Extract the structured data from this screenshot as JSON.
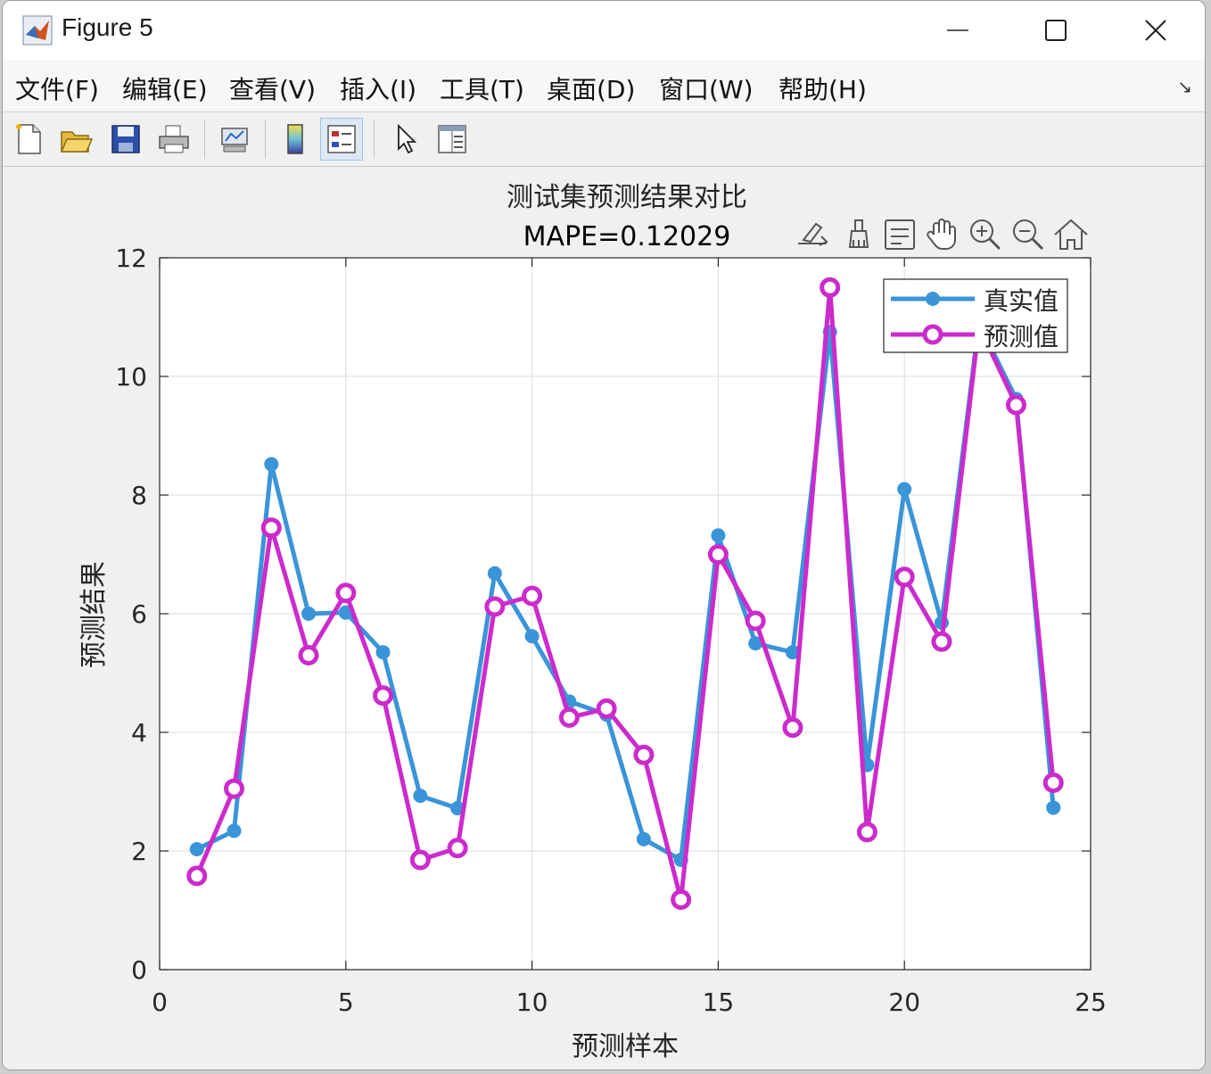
{
  "window": {
    "title": "Figure 5",
    "controls": {
      "minimize": "—",
      "maximize": "☐",
      "close": "✕"
    }
  },
  "menu": {
    "items": [
      "文件(F)",
      "编辑(E)",
      "查看(V)",
      "插入(I)",
      "工具(T)",
      "桌面(D)",
      "窗口(W)",
      "帮助(H)"
    ],
    "dock_arrow": "↘"
  },
  "toolbar": {
    "icons": [
      "new-figure-icon",
      "open-file-icon",
      "save-icon",
      "print-icon",
      "link-plot-icon",
      "colorbar-icon",
      "legend-icon",
      "pointer-icon",
      "property-inspector-icon"
    ],
    "active": "legend-icon"
  },
  "axes_toolbar": {
    "icons": [
      "brush-export-icon",
      "data-brush-icon",
      "data-tip-icon",
      "pan-icon",
      "zoom-in-icon",
      "zoom-out-icon",
      "home-icon"
    ]
  },
  "chart_data": {
    "type": "line",
    "title": "测试集预测结果对比",
    "subtitle": "MAPE=0.12029",
    "xlabel": "预测样本",
    "ylabel": "预测结果",
    "xlim": [
      0,
      25
    ],
    "ylim": [
      0,
      12
    ],
    "xticks": [
      0,
      5,
      10,
      15,
      20,
      25
    ],
    "yticks": [
      0,
      2,
      4,
      6,
      8,
      10,
      12
    ],
    "grid": true,
    "legend_position": "top-right",
    "x": [
      1,
      2,
      3,
      4,
      5,
      6,
      7,
      8,
      9,
      10,
      11,
      12,
      13,
      14,
      15,
      16,
      17,
      18,
      19,
      20,
      21,
      22,
      23,
      24
    ],
    "series": [
      {
        "name": "真实值",
        "color": "#3a94d8",
        "marker": "filled-circle",
        "values": [
          2.03,
          2.34,
          8.52,
          6.0,
          6.02,
          5.35,
          2.93,
          2.72,
          6.68,
          5.62,
          4.52,
          4.3,
          2.2,
          1.85,
          7.32,
          5.5,
          5.35,
          10.75,
          3.45,
          8.1,
          5.85,
          10.9,
          9.62,
          2.73
        ]
      },
      {
        "name": "预测值",
        "color": "#cc2bcc",
        "marker": "open-circle",
        "values": [
          1.58,
          3.05,
          7.45,
          5.3,
          6.35,
          4.62,
          1.85,
          2.05,
          6.12,
          6.3,
          4.25,
          4.4,
          3.62,
          1.18,
          7.0,
          5.88,
          4.08,
          11.5,
          2.32,
          6.62,
          5.53,
          10.85,
          9.52,
          3.15
        ]
      }
    ]
  }
}
